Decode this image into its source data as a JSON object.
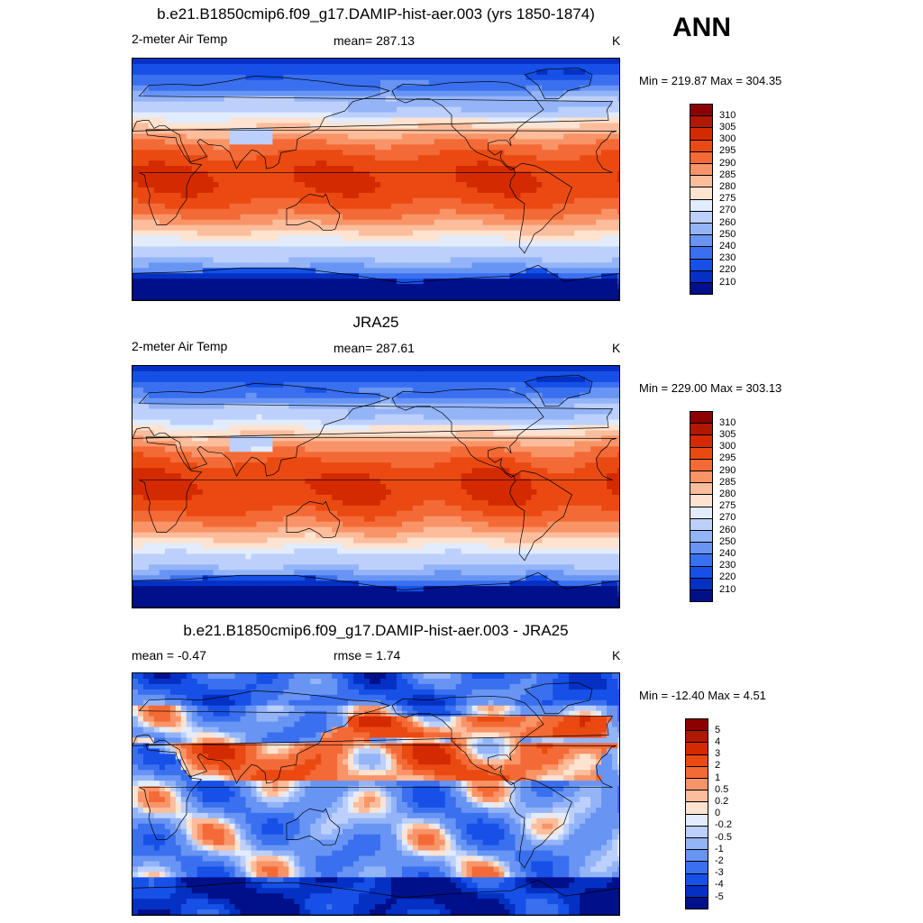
{
  "season": "ANN",
  "panels": [
    {
      "title": "b.e21.B1850cmip6.f09_g17.DAMIP-hist-aer.003 (yrs 1850-1874)",
      "left_label": "2-meter Air Temp",
      "center_label": "mean= 287.13",
      "units": "K",
      "minmax": "Min = 219.87 Max = 304.35",
      "field": "model"
    },
    {
      "title": "JRA25",
      "left_label": "2-meter Air Temp",
      "center_label": "mean= 287.61",
      "units": "K",
      "minmax": "Min = 229.00 Max = 303.13",
      "field": "obs"
    },
    {
      "title": "b.e21.B1850cmip6.f09_g17.DAMIP-hist-aer.003 - JRA25",
      "left_label": "mean =  -0.47",
      "center_label": "rmse =    1.74",
      "units": "K",
      "minmax": "Min = -12.40 Max =   4.51",
      "field": "diff"
    }
  ],
  "colorbars": {
    "temperature": {
      "labels": [
        "310",
        "305",
        "300",
        "295",
        "290",
        "285",
        "280",
        "275",
        "270",
        "260",
        "250",
        "240",
        "230",
        "220",
        "210"
      ],
      "colors": [
        "#8b0000",
        "#b01800",
        "#d42a00",
        "#ea4a12",
        "#f46a36",
        "#f89468",
        "#fbbd9c",
        "#fde3d0",
        "#e2ecfd",
        "#bcd0fb",
        "#94b4f8",
        "#6894f4",
        "#3a70ef",
        "#1650e6",
        "#0530c4",
        "#00108a"
      ]
    },
    "difference": {
      "labels": [
        "5",
        "4",
        "3",
        "2",
        "1",
        "0.5",
        "0.2",
        "0",
        "-0.2",
        "-0.5",
        "-1",
        "-2",
        "-3",
        "-4",
        "-5"
      ],
      "colors": [
        "#8b0000",
        "#b01800",
        "#d42a00",
        "#ea4a12",
        "#f46a36",
        "#f89468",
        "#fbbd9c",
        "#fde3d0",
        "#e2ecfd",
        "#bcd0fb",
        "#94b4f8",
        "#6894f4",
        "#3a70ef",
        "#1650e6",
        "#0530c4",
        "#00108a"
      ]
    }
  }
}
